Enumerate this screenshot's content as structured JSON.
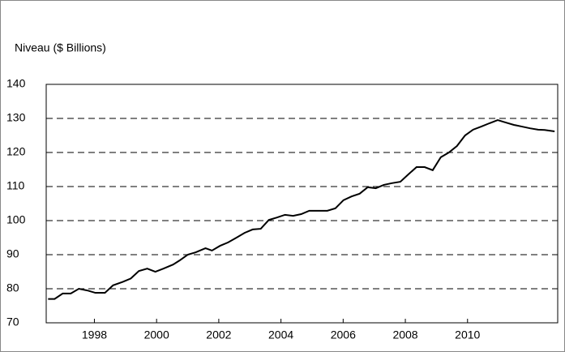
{
  "chart_data": {
    "type": "line",
    "title": "Niveau ($ Billions)",
    "x": [
      1996.51,
      1996.72,
      1996.98,
      1997.24,
      1997.5,
      1997.77,
      1998.03,
      1998.34,
      1998.6,
      1998.91,
      1999.17,
      1999.43,
      1999.7,
      1999.96,
      2000.22,
      2000.53,
      2000.74,
      2001.0,
      2001.26,
      2001.57,
      2001.78,
      2002.04,
      2002.3,
      2002.57,
      2002.83,
      2003.09,
      2003.35,
      2003.61,
      2003.87,
      2004.13,
      2004.39,
      2004.65,
      2004.91,
      2005.23,
      2005.49,
      2005.75,
      2006.01,
      2006.27,
      2006.53,
      2006.79,
      2007.05,
      2007.31,
      2007.57,
      2007.84,
      2008.1,
      2008.36,
      2008.62,
      2008.88,
      2009.14,
      2009.4,
      2009.66,
      2009.92,
      2010.18,
      2010.44,
      2010.71,
      2010.97,
      2011.23,
      2011.49,
      2011.75,
      2012.01,
      2012.27,
      2012.48,
      2012.8
    ],
    "series": [
      {
        "name": "Niveau",
        "color": "#000000",
        "values": [
          77.0,
          77.0,
          78.6,
          78.6,
          80.0,
          79.5,
          78.8,
          78.8,
          81.0,
          82.0,
          83.0,
          85.2,
          85.9,
          85.0,
          85.9,
          87.1,
          88.3,
          90.0,
          90.7,
          91.9,
          91.2,
          92.6,
          93.6,
          95.0,
          96.4,
          97.4,
          97.6,
          100.2,
          100.9,
          101.7,
          101.4,
          101.9,
          102.9,
          102.9,
          102.9,
          103.6,
          106.0,
          107.1,
          107.9,
          109.8,
          109.5,
          110.5,
          111.0,
          111.4,
          113.6,
          115.7,
          115.7,
          114.8,
          118.6,
          120.0,
          121.9,
          125.0,
          126.7,
          127.6,
          128.6,
          129.5,
          128.8,
          128.1,
          127.6,
          127.1,
          126.7,
          126.6,
          126.2
        ]
      }
    ],
    "xlim": [
      1996.45,
      2012.9
    ],
    "xticks": [
      1998,
      2000,
      2002,
      2004,
      2006,
      2008,
      2010
    ],
    "ylim": [
      70,
      140
    ],
    "yticks": [
      70,
      80,
      90,
      100,
      110,
      120,
      130,
      140
    ],
    "grid": true
  }
}
